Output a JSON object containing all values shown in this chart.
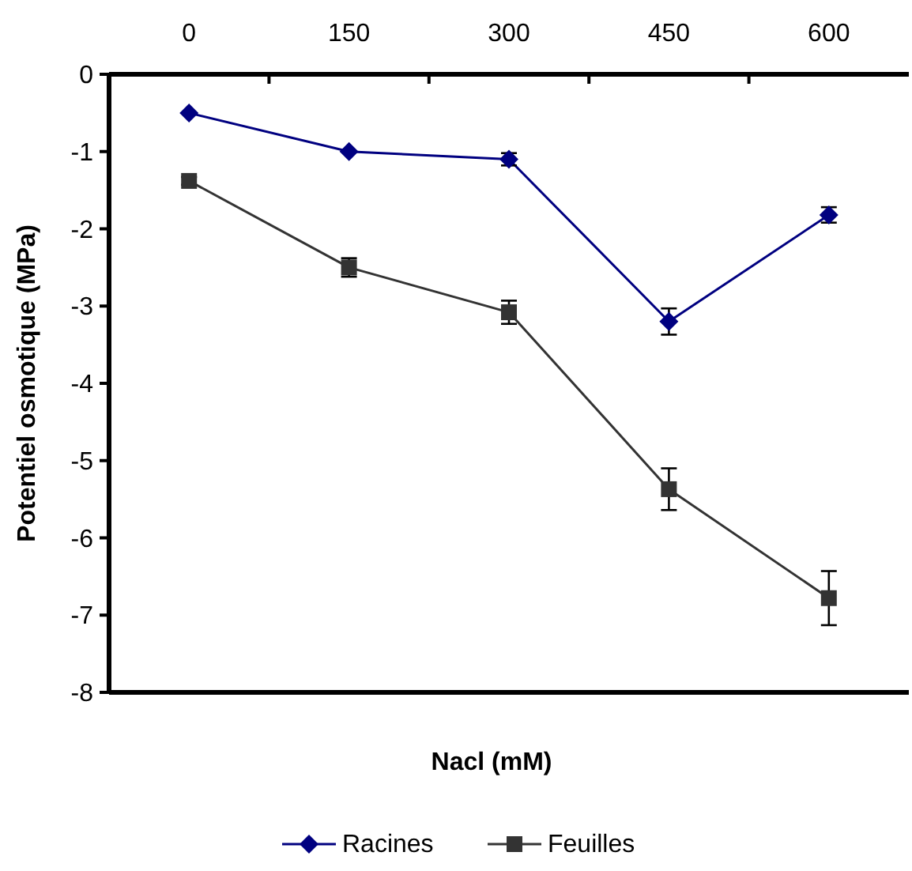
{
  "chart_data": {
    "type": "line",
    "xlabel": "Nacl (mM)",
    "ylabel": "Potentiel osmotique (MPa)",
    "categories": [
      "0",
      "150",
      "300",
      "450",
      "600"
    ],
    "series": [
      {
        "name": "Racines",
        "color": "#000080",
        "marker": "diamond",
        "values": [
          -0.5,
          -1.0,
          -1.1,
          -3.2,
          -1.82
        ],
        "errors": [
          null,
          null,
          0.08,
          0.17,
          0.1
        ]
      },
      {
        "name": "Feuilles",
        "color": "#333333",
        "marker": "square",
        "values": [
          -1.38,
          -2.5,
          -3.08,
          -5.37,
          -6.78
        ],
        "errors": [
          0.05,
          0.12,
          0.15,
          0.27,
          0.35
        ]
      }
    ],
    "ylim": [
      -8,
      0
    ],
    "yticks": [
      -8,
      -7,
      -6,
      -5,
      -4,
      -3,
      -2,
      -1,
      0
    ],
    "legend": "bottom",
    "grid": false
  }
}
